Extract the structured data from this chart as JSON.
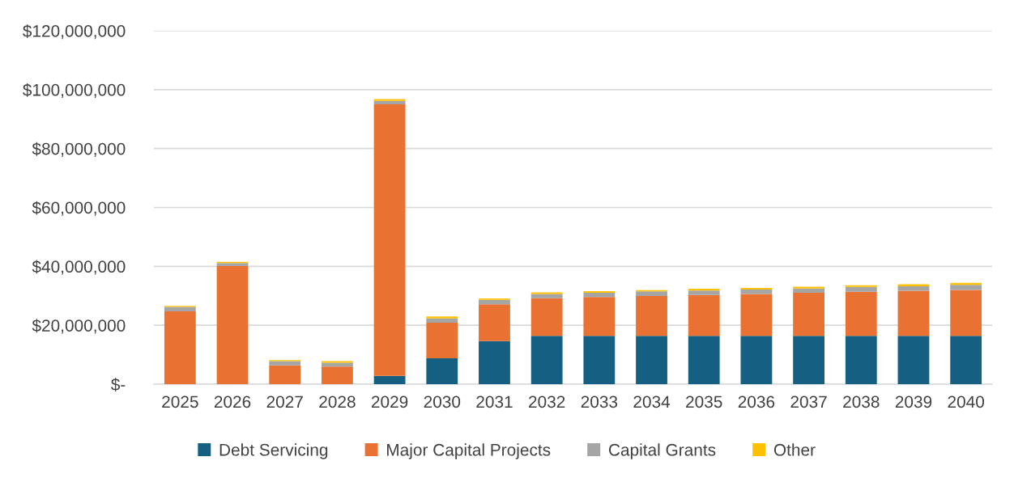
{
  "chart_data": {
    "type": "bar",
    "stacked": true,
    "categories": [
      "2025",
      "2026",
      "2027",
      "2028",
      "2029",
      "2030",
      "2031",
      "2032",
      "2033",
      "2034",
      "2035",
      "2036",
      "2037",
      "2038",
      "2039",
      "2040"
    ],
    "series": [
      {
        "name": "Debt Servicing",
        "color": "#156082",
        "values": [
          0,
          0,
          0,
          0,
          2800000,
          8800000,
          14600000,
          16400000,
          16400000,
          16400000,
          16400000,
          16400000,
          16400000,
          16400000,
          16400000,
          16400000
        ]
      },
      {
        "name": "Major Capital Projects",
        "color": "#e97132",
        "values": [
          24700000,
          40100000,
          6400000,
          6000000,
          92200000,
          12100000,
          12500000,
          12800000,
          13200000,
          13500000,
          13900000,
          14200000,
          14600000,
          15000000,
          15300000,
          15600000
        ]
      },
      {
        "name": "Capital Grants",
        "color": "#a5a5a5",
        "values": [
          1500000,
          1000000,
          1400000,
          1300000,
          1200000,
          1400000,
          1500000,
          1400000,
          1400000,
          1600000,
          1500000,
          1500000,
          1500000,
          1600000,
          1500000,
          1700000
        ]
      },
      {
        "name": "Other",
        "color": "#ffc000",
        "values": [
          400000,
          400000,
          400000,
          500000,
          600000,
          700000,
          500000,
          600000,
          600000,
          400000,
          600000,
          600000,
          600000,
          600000,
          700000,
          700000
        ]
      }
    ],
    "ylim": [
      0,
      120000000
    ],
    "yticks": [
      {
        "value": 0,
        "label": "$-"
      },
      {
        "value": 20000000,
        "label": "$20,000,000"
      },
      {
        "value": 40000000,
        "label": "$40,000,000"
      },
      {
        "value": 60000000,
        "label": "$60,000,000"
      },
      {
        "value": 80000000,
        "label": "$80,000,000"
      },
      {
        "value": 100000000,
        "label": "$100,000,000"
      },
      {
        "value": 120000000,
        "label": "$120,000,000"
      }
    ],
    "grid": "y",
    "legend": "bottom"
  }
}
